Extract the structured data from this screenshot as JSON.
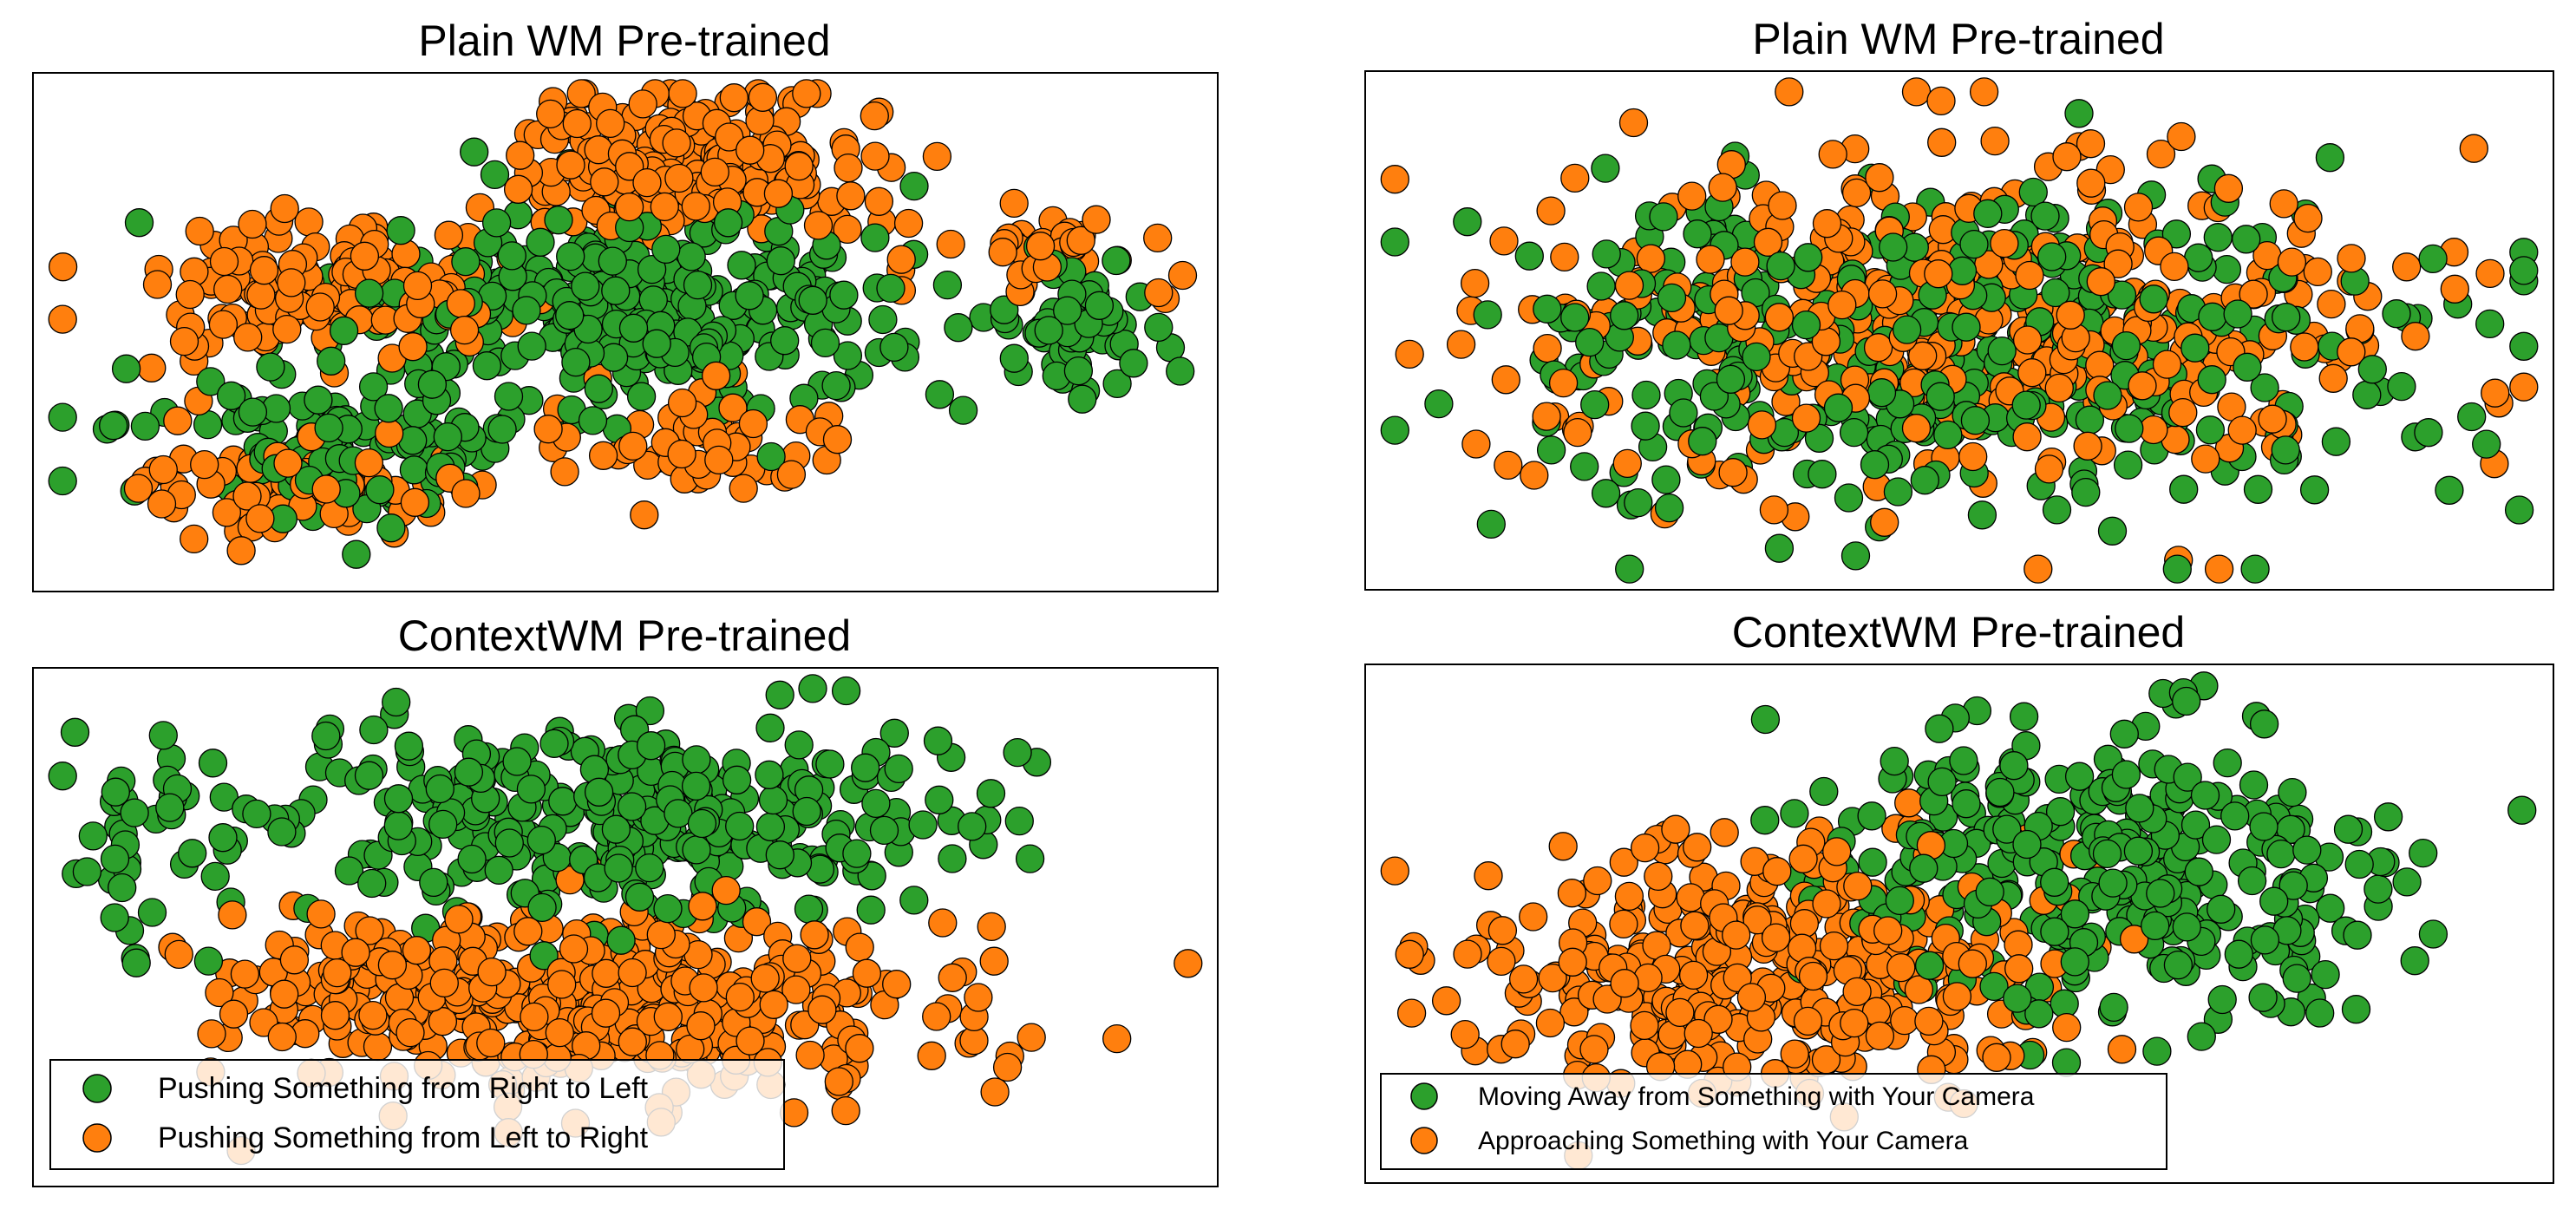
{
  "colors": {
    "green": "#2ca02c",
    "orange": "#ff7f0e",
    "edge": "#000000"
  },
  "chart_data": [
    {
      "type": "scatter",
      "title": "Plain WM Pre-trained",
      "axes_visible": false,
      "legend": null,
      "series": [
        {
          "name": "Pushing Something from Right to Left",
          "color": "#2ca02c",
          "clusters": [
            {
              "cx": 0.5,
              "cy": 0.45,
              "rx": 0.22,
              "ry": 0.19,
              "n": 320
            },
            {
              "cx": 0.25,
              "cy": 0.72,
              "rx": 0.16,
              "ry": 0.12,
              "n": 120
            },
            {
              "cx": 0.87,
              "cy": 0.5,
              "rx": 0.07,
              "ry": 0.12,
              "n": 55
            }
          ]
        },
        {
          "name": "Pushing Something from Left to Right",
          "color": "#ff7f0e",
          "clusters": [
            {
              "cx": 0.55,
              "cy": 0.18,
              "rx": 0.14,
              "ry": 0.12,
              "n": 230
            },
            {
              "cx": 0.25,
              "cy": 0.42,
              "rx": 0.13,
              "ry": 0.11,
              "n": 160
            },
            {
              "cx": 0.22,
              "cy": 0.8,
              "rx": 0.14,
              "ry": 0.08,
              "n": 90
            },
            {
              "cx": 0.58,
              "cy": 0.72,
              "rx": 0.1,
              "ry": 0.1,
              "n": 60
            },
            {
              "cx": 0.85,
              "cy": 0.35,
              "rx": 0.1,
              "ry": 0.08,
              "n": 40
            }
          ]
        }
      ]
    },
    {
      "type": "scatter",
      "title": "Plain WM Pre-trained",
      "axes_visible": false,
      "legend": null,
      "series": [
        {
          "name": "Moving Away from Something with Your Camera",
          "color": "#2ca02c",
          "clusters": [
            {
              "cx": 0.5,
              "cy": 0.52,
              "rx": 0.34,
              "ry": 0.3,
              "n": 420
            }
          ]
        },
        {
          "name": "Approaching Something with Your Camera",
          "color": "#ff7f0e",
          "clusters": [
            {
              "cx": 0.5,
              "cy": 0.48,
              "rx": 0.33,
              "ry": 0.29,
              "n": 420
            }
          ]
        }
      ]
    },
    {
      "type": "scatter",
      "title": "ContextWM Pre-trained",
      "axes_visible": false,
      "legend": {
        "placement": "lower-left",
        "entries": [
          {
            "label": "Pushing Something from Right to Left",
            "color": "#2ca02c"
          },
          {
            "label": "Pushing Something from Left to Right",
            "color": "#ff7f0e"
          }
        ]
      },
      "series": [
        {
          "name": "Pushing Something from Right to Left",
          "color": "#2ca02c",
          "clusters": [
            {
              "cx": 0.5,
              "cy": 0.3,
              "rx": 0.26,
              "ry": 0.18,
              "n": 330
            },
            {
              "cx": 0.1,
              "cy": 0.3,
              "rx": 0.07,
              "ry": 0.18,
              "n": 40
            }
          ]
        },
        {
          "name": "Pushing Something from Left to Right",
          "color": "#ff7f0e",
          "clusters": [
            {
              "cx": 0.5,
              "cy": 0.65,
              "rx": 0.25,
              "ry": 0.16,
              "n": 360
            },
            {
              "cx": 0.3,
              "cy": 0.6,
              "rx": 0.12,
              "ry": 0.12,
              "n": 90
            }
          ]
        }
      ]
    },
    {
      "type": "scatter",
      "title": "ContextWM Pre-trained",
      "axes_visible": false,
      "legend": {
        "placement": "lower-left",
        "entries": [
          {
            "label": "Moving Away from Something with Your Camera",
            "color": "#2ca02c"
          },
          {
            "label": "Approaching Something with Your Camera",
            "color": "#ff7f0e"
          }
        ]
      },
      "series": [
        {
          "name": "Moving Away from Something with Your Camera",
          "color": "#2ca02c",
          "clusters": [
            {
              "cx": 0.62,
              "cy": 0.4,
              "rx": 0.22,
              "ry": 0.26,
              "n": 330
            }
          ]
        },
        {
          "name": "Approaching Something with Your Camera",
          "color": "#ff7f0e",
          "clusters": [
            {
              "cx": 0.33,
              "cy": 0.58,
              "rx": 0.22,
              "ry": 0.22,
              "n": 360
            }
          ]
        }
      ]
    }
  ]
}
